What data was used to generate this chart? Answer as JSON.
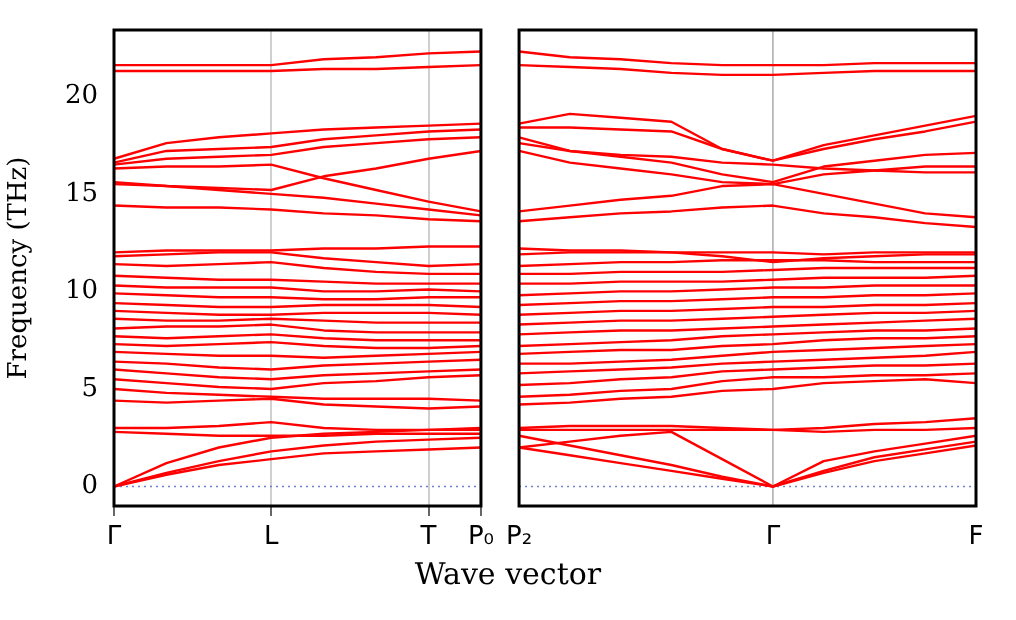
{
  "chart_data": [
    {
      "type": "line",
      "ylabel": "Frequency (THz)",
      "categories": [
        "Γ",
        null,
        null,
        "L",
        null,
        null,
        "T",
        "P₀"
      ],
      "ylim": [
        -1,
        23.4
      ],
      "yticks": [
        0,
        5,
        10,
        15,
        20
      ],
      "grid": "x",
      "marker": "none",
      "line_style": "solid",
      "legend": false,
      "ref_lines": [
        {
          "axis": "y",
          "value": 0,
          "color": "#6f7fd0",
          "line_style": "dotted"
        }
      ],
      "series": [
        {
          "color": "#ff0000",
          "values": [
            21.6,
            21.6,
            21.6,
            21.6,
            21.9,
            22.0,
            22.2,
            22.3
          ]
        },
        {
          "color": "#ff0000",
          "values": [
            21.3,
            21.3,
            21.3,
            21.3,
            21.4,
            21.4,
            21.5,
            21.6
          ]
        },
        {
          "color": "#ff0000",
          "values": [
            16.8,
            17.6,
            17.9,
            18.1,
            18.3,
            18.4,
            18.5,
            18.6
          ]
        },
        {
          "color": "#ff0000",
          "values": [
            16.6,
            17.2,
            17.3,
            17.4,
            17.8,
            18.0,
            18.2,
            18.3
          ]
        },
        {
          "color": "#ff0000",
          "values": [
            16.5,
            16.8,
            16.9,
            17.0,
            17.4,
            17.6,
            17.8,
            17.9
          ]
        },
        {
          "color": "#ff0000",
          "values": [
            15.6,
            15.4,
            15.3,
            15.2,
            15.9,
            16.3,
            16.8,
            17.2
          ]
        },
        {
          "color": "#ff0000",
          "values": [
            16.3,
            16.4,
            16.4,
            16.5,
            15.8,
            15.2,
            14.6,
            14.1
          ]
        },
        {
          "color": "#ff0000",
          "values": [
            15.5,
            15.4,
            15.2,
            15.0,
            14.8,
            14.5,
            14.2,
            13.9
          ]
        },
        {
          "color": "#ff0000",
          "values": [
            14.4,
            14.3,
            14.3,
            14.2,
            14.0,
            13.9,
            13.7,
            13.6
          ]
        },
        {
          "color": "#ff0000",
          "values": [
            12.0,
            12.1,
            12.1,
            12.1,
            12.2,
            12.2,
            12.3,
            12.3
          ]
        },
        {
          "color": "#ff0000",
          "values": [
            11.8,
            11.9,
            12.0,
            12.0,
            11.7,
            11.5,
            11.3,
            11.4
          ]
        },
        {
          "color": "#ff0000",
          "values": [
            11.4,
            11.3,
            11.4,
            11.5,
            11.2,
            11.0,
            10.9,
            10.9
          ]
        },
        {
          "color": "#ff0000",
          "values": [
            10.8,
            10.7,
            10.6,
            10.6,
            10.5,
            10.4,
            10.4,
            10.4
          ]
        },
        {
          "color": "#ff0000",
          "values": [
            10.3,
            10.2,
            10.2,
            10.2,
            10.0,
            10.0,
            10.1,
            10.0
          ]
        },
        {
          "color": "#ff0000",
          "values": [
            9.9,
            9.8,
            9.7,
            9.7,
            9.6,
            9.6,
            9.7,
            9.7
          ]
        },
        {
          "color": "#ff0000",
          "values": [
            9.4,
            9.3,
            9.2,
            9.2,
            9.3,
            9.3,
            9.3,
            9.2
          ]
        },
        {
          "color": "#ff0000",
          "values": [
            9.0,
            8.9,
            8.8,
            8.8,
            8.9,
            8.9,
            8.9,
            8.8
          ]
        },
        {
          "color": "#ff0000",
          "values": [
            8.6,
            8.5,
            8.5,
            8.6,
            8.5,
            8.4,
            8.4,
            8.4
          ]
        },
        {
          "color": "#ff0000",
          "values": [
            8.1,
            8.2,
            8.2,
            8.3,
            8.0,
            7.9,
            7.9,
            7.9
          ]
        },
        {
          "color": "#ff0000",
          "values": [
            7.7,
            7.6,
            7.7,
            7.8,
            7.6,
            7.5,
            7.5,
            7.5
          ]
        },
        {
          "color": "#ff0000",
          "values": [
            7.3,
            7.2,
            7.3,
            7.4,
            7.2,
            7.1,
            7.1,
            7.2
          ]
        },
        {
          "color": "#ff0000",
          "values": [
            6.9,
            6.8,
            6.7,
            6.7,
            6.6,
            6.7,
            6.8,
            6.9
          ]
        },
        {
          "color": "#ff0000",
          "values": [
            6.4,
            6.3,
            6.1,
            6.0,
            6.2,
            6.3,
            6.4,
            6.5
          ]
        },
        {
          "color": "#ff0000",
          "values": [
            6.0,
            5.8,
            5.6,
            5.5,
            5.7,
            5.8,
            5.9,
            6.0
          ]
        },
        {
          "color": "#ff0000",
          "values": [
            5.5,
            5.3,
            5.1,
            5.0,
            5.3,
            5.4,
            5.6,
            5.7
          ]
        },
        {
          "color": "#ff0000",
          "values": [
            5.0,
            4.8,
            4.7,
            4.6,
            4.5,
            4.5,
            4.5,
            4.4
          ]
        },
        {
          "color": "#ff0000",
          "values": [
            4.4,
            4.3,
            4.4,
            4.5,
            4.2,
            4.1,
            4.0,
            4.1
          ]
        },
        {
          "color": "#ff0000",
          "values": [
            3.0,
            3.0,
            3.1,
            3.3,
            3.0,
            2.9,
            2.9,
            3.0
          ]
        },
        {
          "color": "#ff0000",
          "values": [
            2.8,
            2.7,
            2.6,
            2.6,
            2.6,
            2.7,
            2.7,
            2.7
          ]
        },
        {
          "color": "#ff0000",
          "values": [
            0,
            1.2,
            2.0,
            2.5,
            2.7,
            2.8,
            2.9,
            2.9
          ]
        },
        {
          "color": "#ff0000",
          "values": [
            0,
            0.7,
            1.3,
            1.8,
            2.1,
            2.3,
            2.4,
            2.5
          ]
        },
        {
          "color": "#ff0000",
          "values": [
            0,
            0.6,
            1.1,
            1.4,
            1.7,
            1.8,
            1.9,
            2.0
          ]
        }
      ]
    },
    {
      "type": "line",
      "xlabel": "Wave vector",
      "categories": [
        "P₂",
        null,
        null,
        null,
        null,
        "Γ",
        null,
        null,
        null,
        "F"
      ],
      "ylim": [
        -1,
        23.4
      ],
      "yticks": [
        0,
        5,
        10,
        15,
        20
      ],
      "tick_labels": "x",
      "marker": "none",
      "line_style": "solid",
      "legend": false,
      "ref_lines": [
        {
          "axis": "y",
          "value": 0,
          "color": "#6f7fd0",
          "line_style": "dotted"
        },
        {
          "axis": "x",
          "value": "Γ",
          "color": "#b0b0b0"
        }
      ],
      "series": [
        {
          "color": "#ff0000",
          "values": [
            22.3,
            22.0,
            21.9,
            21.7,
            21.6,
            21.6,
            21.6,
            21.7,
            21.7,
            21.7
          ]
        },
        {
          "color": "#ff0000",
          "values": [
            21.6,
            21.5,
            21.4,
            21.2,
            21.1,
            21.1,
            21.2,
            21.3,
            21.3,
            21.3
          ]
        },
        {
          "color": "#ff0000",
          "values": [
            18.6,
            19.1,
            18.9,
            18.7,
            17.3,
            16.7,
            17.5,
            18.0,
            18.5,
            19.0
          ]
        },
        {
          "color": "#ff0000",
          "values": [
            18.4,
            18.4,
            18.3,
            18.2,
            17.3,
            16.7,
            17.3,
            17.8,
            18.2,
            18.7
          ]
        },
        {
          "color": "#ff0000",
          "values": [
            17.9,
            17.2,
            16.9,
            16.6,
            16.0,
            15.6,
            16.4,
            16.7,
            17.0,
            17.1
          ]
        },
        {
          "color": "#ff0000",
          "values": [
            17.2,
            16.6,
            16.3,
            16.0,
            15.6,
            15.5,
            16.0,
            16.2,
            16.4,
            16.4
          ]
        },
        {
          "color": "#ff0000",
          "values": [
            17.6,
            17.2,
            17.0,
            16.9,
            16.6,
            16.5,
            16.3,
            16.2,
            16.1,
            16.1
          ]
        },
        {
          "color": "#ff0000",
          "values": [
            14.1,
            14.4,
            14.7,
            14.9,
            15.4,
            15.5,
            15.0,
            14.5,
            14.0,
            13.8
          ]
        },
        {
          "color": "#ff0000",
          "values": [
            13.6,
            13.8,
            14.0,
            14.1,
            14.3,
            14.4,
            14.0,
            13.8,
            13.5,
            13.3
          ]
        },
        {
          "color": "#ff0000",
          "values": [
            12.2,
            12.1,
            12.1,
            12.0,
            12.0,
            12.0,
            11.9,
            12.0,
            12.0,
            12.0
          ]
        },
        {
          "color": "#ff0000",
          "values": [
            11.9,
            12.0,
            12.0,
            12.0,
            11.8,
            11.5,
            11.7,
            11.8,
            11.9,
            11.9
          ]
        },
        {
          "color": "#ff0000",
          "values": [
            11.3,
            11.4,
            11.5,
            11.5,
            11.6,
            11.6,
            11.6,
            11.5,
            11.5,
            11.5
          ]
        },
        {
          "color": "#ff0000",
          "values": [
            10.9,
            10.9,
            11.0,
            11.0,
            11.0,
            11.1,
            11.2,
            11.2,
            11.2,
            11.2
          ]
        },
        {
          "color": "#ff0000",
          "values": [
            10.4,
            10.4,
            10.5,
            10.5,
            10.5,
            10.6,
            10.7,
            10.7,
            10.7,
            10.8
          ]
        },
        {
          "color": "#ff0000",
          "values": [
            9.8,
            9.9,
            10.0,
            10.0,
            10.1,
            10.2,
            10.2,
            10.3,
            10.3,
            10.3
          ]
        },
        {
          "color": "#ff0000",
          "values": [
            9.3,
            9.4,
            9.5,
            9.5,
            9.6,
            9.7,
            9.7,
            9.8,
            9.8,
            9.9
          ]
        },
        {
          "color": "#ff0000",
          "values": [
            8.8,
            8.9,
            9.0,
            9.0,
            9.1,
            9.2,
            9.2,
            9.3,
            9.3,
            9.4
          ]
        },
        {
          "color": "#ff0000",
          "values": [
            8.3,
            8.4,
            8.5,
            8.5,
            8.6,
            8.7,
            8.8,
            8.9,
            8.9,
            9.0
          ]
        },
        {
          "color": "#ff0000",
          "values": [
            7.8,
            7.9,
            8.0,
            8.0,
            8.1,
            8.2,
            8.3,
            8.4,
            8.5,
            8.6
          ]
        },
        {
          "color": "#ff0000",
          "values": [
            7.2,
            7.3,
            7.4,
            7.5,
            7.7,
            7.8,
            7.9,
            8.0,
            8.0,
            8.1
          ]
        },
        {
          "color": "#ff0000",
          "values": [
            6.8,
            6.9,
            7.0,
            7.0,
            7.2,
            7.3,
            7.5,
            7.6,
            7.6,
            7.7
          ]
        },
        {
          "color": "#ff0000",
          "values": [
            6.3,
            6.3,
            6.4,
            6.5,
            6.7,
            6.9,
            7.0,
            7.1,
            7.2,
            7.3
          ]
        },
        {
          "color": "#ff0000",
          "values": [
            5.8,
            5.9,
            6.0,
            6.1,
            6.3,
            6.4,
            6.5,
            6.6,
            6.7,
            6.9
          ]
        },
        {
          "color": "#ff0000",
          "values": [
            5.2,
            5.3,
            5.5,
            5.6,
            5.9,
            6.0,
            6.1,
            6.2,
            6.2,
            6.3
          ]
        },
        {
          "color": "#ff0000",
          "values": [
            4.6,
            4.7,
            4.9,
            5.0,
            5.4,
            5.6,
            5.6,
            5.7,
            5.7,
            5.8
          ]
        },
        {
          "color": "#ff0000",
          "values": [
            4.2,
            4.3,
            4.5,
            4.6,
            4.9,
            5.0,
            5.3,
            5.4,
            5.5,
            5.3
          ]
        },
        {
          "color": "#ff0000",
          "values": [
            3.0,
            3.1,
            3.1,
            3.1,
            3.0,
            2.9,
            3.0,
            3.2,
            3.3,
            3.5
          ]
        },
        {
          "color": "#ff0000",
          "values": [
            2.9,
            2.9,
            2.9,
            2.9,
            2.9,
            2.9,
            2.8,
            2.9,
            2.9,
            3.0
          ]
        },
        {
          "color": "#ff0000",
          "values": [
            2.0,
            2.3,
            2.6,
            2.8,
            1.4,
            0,
            1.3,
            1.8,
            2.2,
            2.6
          ]
        },
        {
          "color": "#ff0000",
          "values": [
            2.6,
            2.1,
            1.6,
            1.1,
            0.5,
            0,
            0.8,
            1.5,
            1.9,
            2.3
          ]
        },
        {
          "color": "#ff0000",
          "values": [
            2.0,
            1.6,
            1.2,
            0.8,
            0.4,
            0,
            0.7,
            1.3,
            1.7,
            2.1
          ]
        }
      ]
    }
  ]
}
